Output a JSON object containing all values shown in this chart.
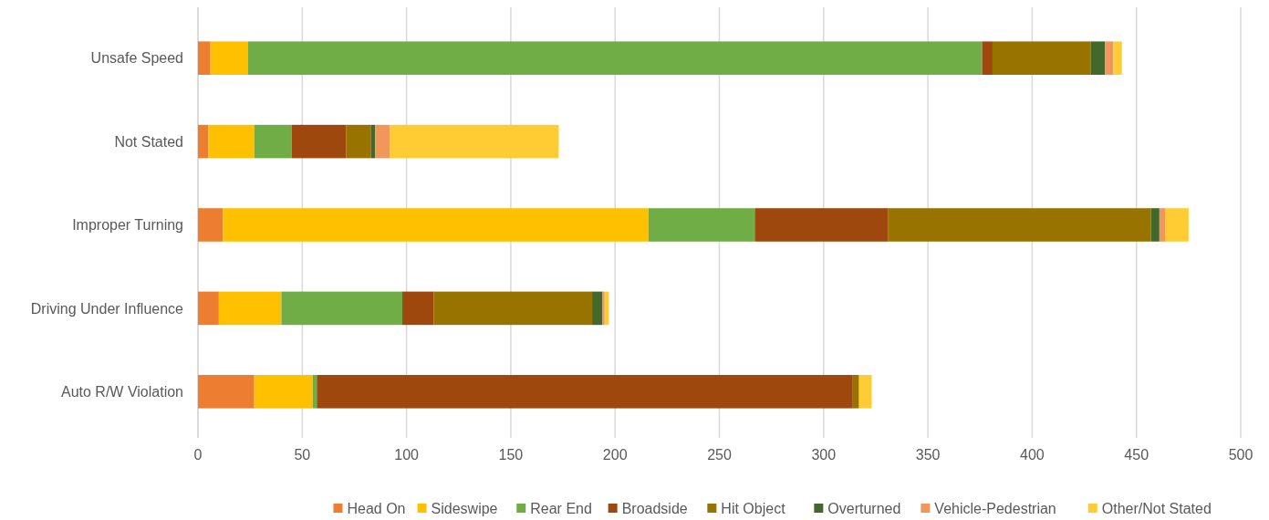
{
  "chart_data": {
    "type": "bar",
    "orientation": "horizontal",
    "stacked": true,
    "categories": [
      "Unsafe Speed",
      "Not Stated",
      "Improper Turning",
      "Driving Under Influence",
      "Auto R/W Violation"
    ],
    "series": [
      {
        "name": "Head On",
        "color": "#ed7d31",
        "values": [
          6,
          5,
          12,
          10,
          27
        ]
      },
      {
        "name": "Sideswipe",
        "color": "#ffc000",
        "values": [
          18,
          22,
          204,
          30,
          28
        ]
      },
      {
        "name": "Rear End",
        "color": "#70ad47",
        "values": [
          352,
          18,
          51,
          58,
          2
        ]
      },
      {
        "name": "Broadside",
        "color": "#9e480e",
        "values": [
          5,
          26,
          64,
          15,
          257
        ]
      },
      {
        "name": "Hit Object",
        "color": "#997300",
        "values": [
          47,
          12,
          126,
          76,
          3
        ]
      },
      {
        "name": "Overturned",
        "color": "#43682b",
        "values": [
          7,
          2,
          4,
          5,
          0
        ]
      },
      {
        "name": "Vehicle-Pedestrian",
        "color": "#f1975a",
        "values": [
          4,
          7,
          3,
          1,
          0
        ]
      },
      {
        "name": "Other/Not Stated",
        "color": "#ffcd33",
        "values": [
          4,
          81,
          11,
          2,
          6
        ]
      }
    ],
    "xlim": [
      0,
      500
    ],
    "xticks": [
      0,
      50,
      100,
      150,
      200,
      250,
      300,
      350,
      400,
      450,
      500
    ],
    "grid": "x",
    "legend": "bottom"
  }
}
